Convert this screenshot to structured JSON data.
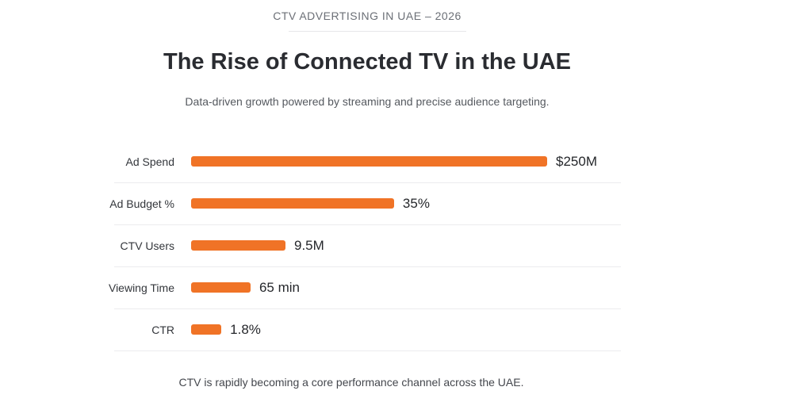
{
  "eyebrow": "CTV ADVERTISING IN UAE – 2026",
  "title": "The Rise of Connected TV in the UAE",
  "subtitle": "Data-driven growth powered by streaming and precise audience targeting.",
  "footer": "CTV is rapidly becoming a core performance channel across the UAE.",
  "colors": {
    "bar": "#f07326",
    "divider": "#ececee"
  },
  "chart_data": {
    "type": "bar",
    "orientation": "horizontal",
    "grid": false,
    "categories": [
      "Ad Spend",
      "Ad Budget %",
      "CTV Users",
      "Viewing Time",
      "CTR"
    ],
    "value_labels": [
      "$250M",
      "35%",
      "9.5M",
      "65 min",
      "1.8%"
    ],
    "values": [
      250,
      35,
      9.5,
      65,
      1.8
    ],
    "units": [
      "USD millions",
      "percent",
      "millions",
      "minutes",
      "percent"
    ],
    "bar_fill_pct": [
      100,
      57,
      26.5,
      16.7,
      8.5
    ]
  }
}
